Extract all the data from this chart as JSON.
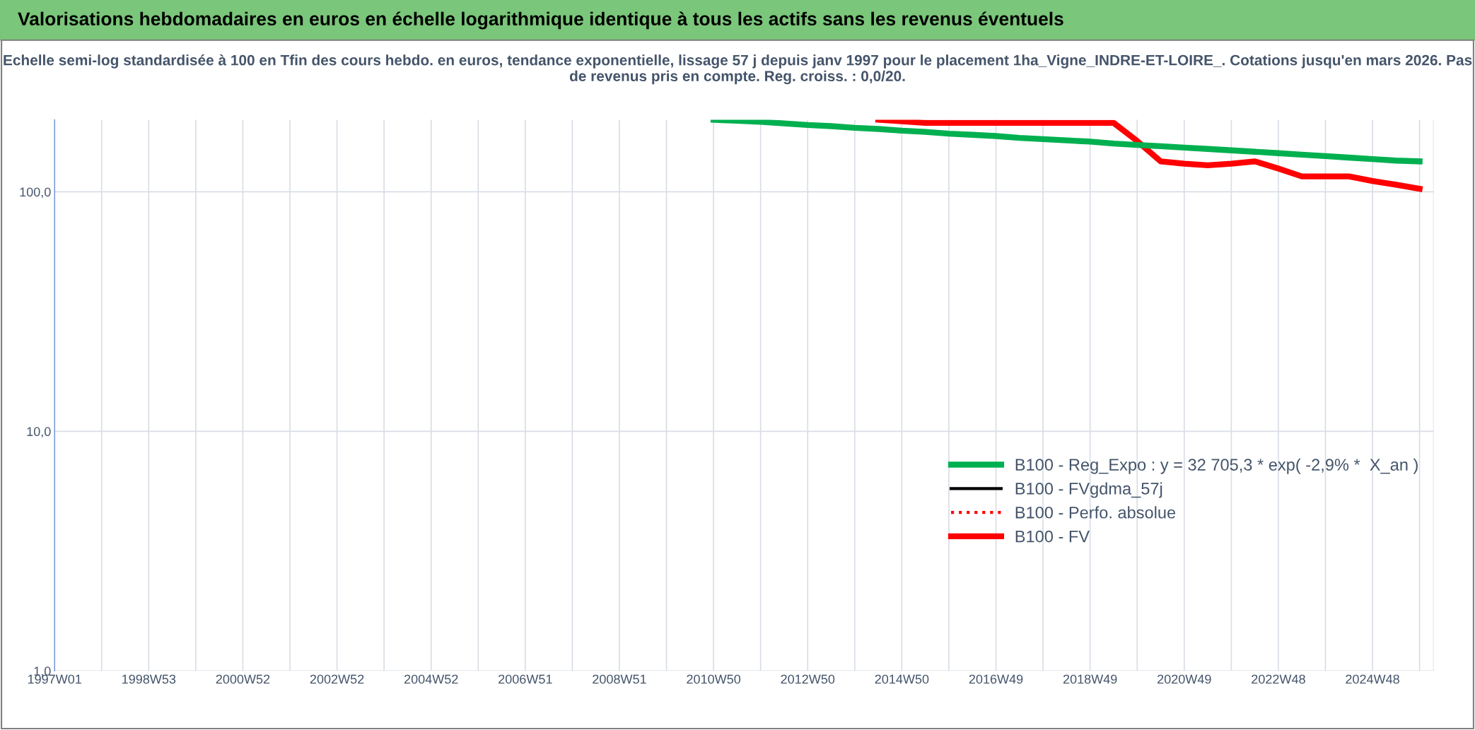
{
  "chart_data": {
    "type": "line",
    "title": "Valorisations hebdomadaires en euros en échelle logarithmique identique à tous les actifs sans les revenus éventuels",
    "subtitle": "Echelle semi-log standardisée à 100 en Tfin des cours hebdo. en euros, tendance exponentielle, lissage 57 j depuis janv 1997 pour le placement 1ha_Vigne_INDRE-ET-LOIRE_. Cotations jusqu'en mars 2026. Pas de revenus pris en compte. Reg. croiss. : 0,0/20.",
    "log": "y",
    "grid": true,
    "legend": "lower right",
    "marker": "none",
    "ylim": [
      1,
      200
    ],
    "yticks": [
      {
        "value": 1,
        "label": "1,0"
      },
      {
        "value": 10,
        "label": "10,0"
      },
      {
        "value": 100,
        "label": "100,0"
      }
    ],
    "categories": [
      "1997W01",
      null,
      null,
      null,
      "1998W53",
      null,
      null,
      null,
      "2000W52",
      null,
      null,
      null,
      "2002W52",
      null,
      null,
      null,
      "2004W52",
      null,
      null,
      null,
      "2006W51",
      null,
      null,
      null,
      "2008W51",
      null,
      null,
      null,
      "2010W50",
      null,
      null,
      null,
      "2012W50",
      null,
      null,
      null,
      "2014W50",
      null,
      null,
      null,
      "2016W49",
      null,
      null,
      null,
      "2018W49",
      null,
      null,
      null,
      "2020W49",
      null,
      null,
      null,
      "2022W48",
      null,
      null,
      null,
      "2024W48",
      null,
      null
    ],
    "series": [
      {
        "name": "B100 - Reg_Expo : y = 32 705,3 * exp( -2,9% *  X_an )",
        "color": "#00b050",
        "values": [
          null,
          null,
          null,
          null,
          null,
          null,
          null,
          null,
          null,
          null,
          null,
          null,
          null,
          null,
          null,
          null,
          null,
          null,
          null,
          null,
          null,
          null,
          null,
          null,
          null,
          null,
          null,
          null,
          200,
          198,
          196,
          193,
          190,
          188,
          185,
          183,
          180,
          178,
          175,
          173,
          171,
          168,
          166,
          164,
          162,
          159,
          157,
          155,
          153,
          151,
          149,
          147,
          145,
          143,
          141,
          139,
          137,
          135,
          134
        ]
      },
      {
        "name": "B100 - FVgdma_57j",
        "color": "#000000",
        "values": [
          null,
          null,
          null,
          null,
          null,
          null,
          null,
          null,
          null,
          null,
          null,
          null,
          null,
          null,
          null,
          null,
          null,
          null,
          null,
          null,
          null,
          null,
          null,
          null,
          null,
          null,
          null,
          null,
          null,
          null,
          null,
          null,
          null,
          null,
          null,
          null,
          null,
          null,
          null,
          null,
          null,
          null,
          null,
          null,
          null,
          null,
          null,
          null,
          null,
          null,
          null,
          null,
          null,
          null,
          null,
          null,
          null,
          null,
          null
        ]
      },
      {
        "name": "B100 - Perfo. absolue",
        "color": "#ff0000",
        "line_style": "dotted",
        "values": [
          null,
          null,
          null,
          null,
          null,
          null,
          null,
          null,
          null,
          null,
          null,
          null,
          null,
          null,
          null,
          null,
          null,
          null,
          null,
          null,
          null,
          null,
          null,
          null,
          null,
          null,
          null,
          null,
          null,
          null,
          null,
          null,
          null,
          null,
          null,
          null,
          null,
          null,
          null,
          null,
          null,
          null,
          null,
          null,
          null,
          null,
          null,
          null,
          null,
          null,
          null,
          null,
          null,
          null,
          null,
          null,
          null,
          null,
          null
        ]
      },
      {
        "name": "B100 - FV",
        "color": "#ff0000",
        "values": [
          null,
          null,
          null,
          null,
          null,
          null,
          null,
          null,
          null,
          null,
          null,
          null,
          null,
          null,
          null,
          null,
          null,
          null,
          null,
          null,
          null,
          null,
          null,
          null,
          null,
          null,
          null,
          null,
          null,
          null,
          null,
          null,
          null,
          null,
          null,
          200,
          197,
          194,
          194,
          194,
          194,
          194,
          194,
          194,
          194,
          194,
          163,
          134,
          131,
          129,
          131,
          134,
          125,
          116,
          116,
          116,
          111,
          107,
          103
        ]
      }
    ]
  }
}
